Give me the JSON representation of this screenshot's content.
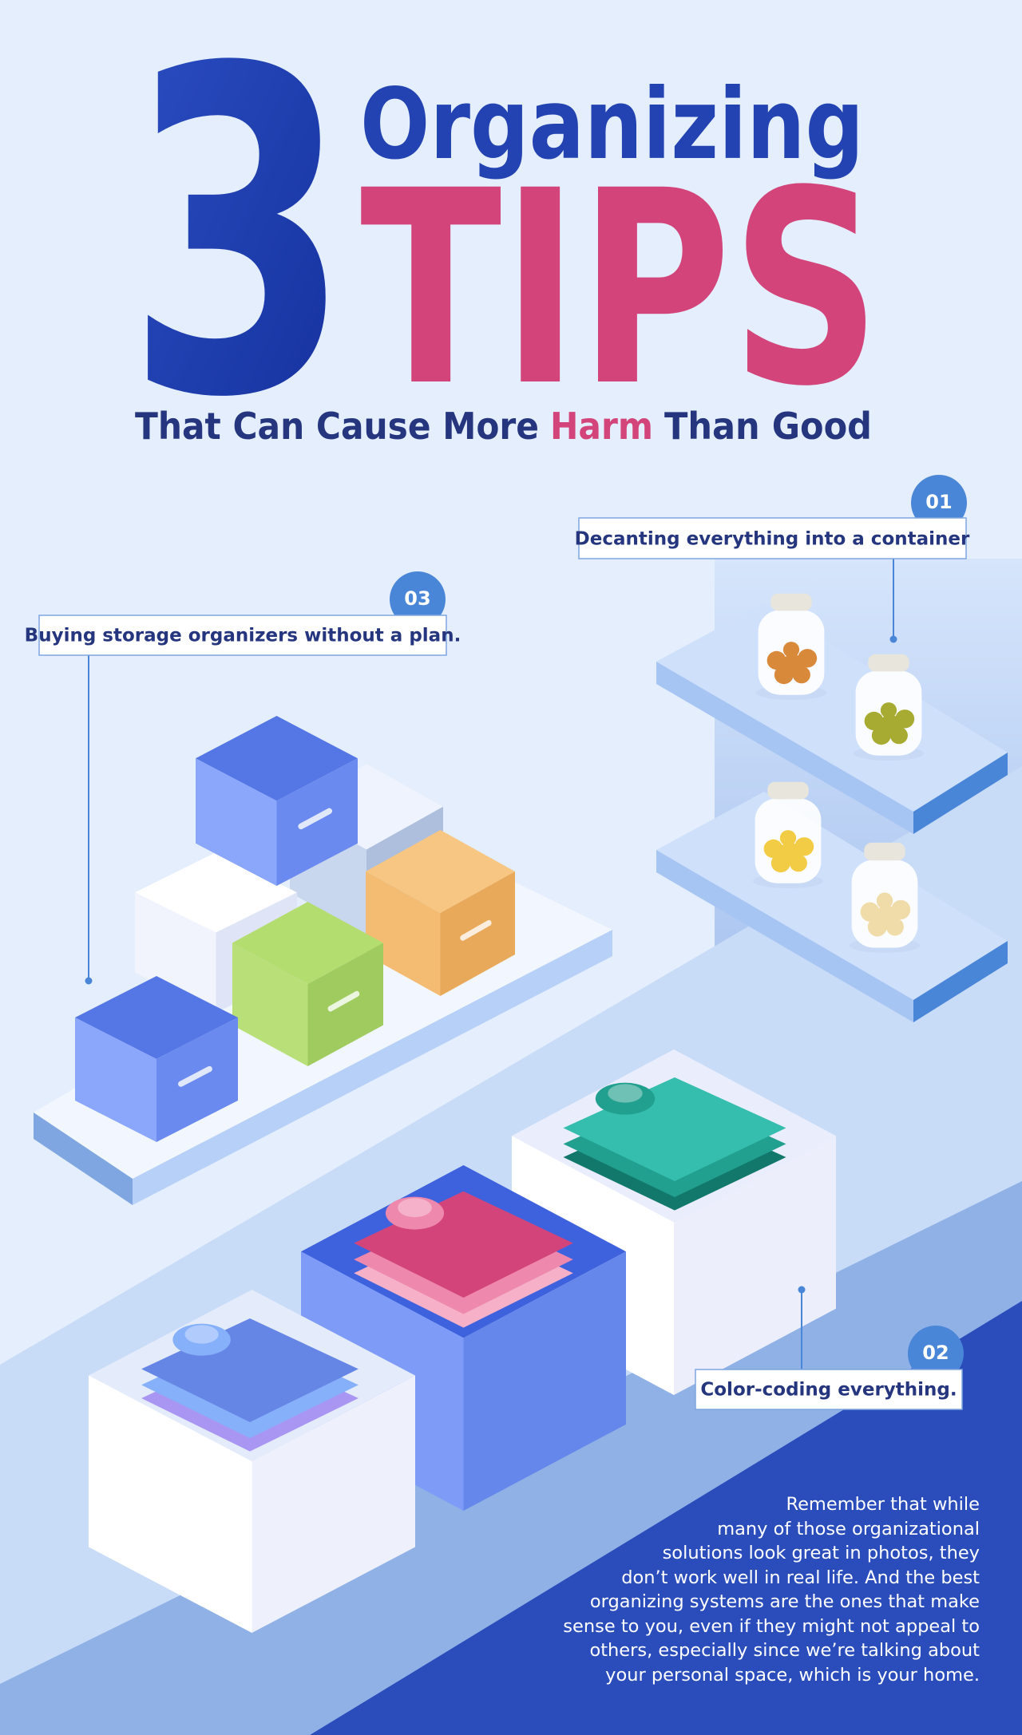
{
  "title": {
    "number": "3",
    "word": "Organizing",
    "tips": "TIPS",
    "subtitle": {
      "before": "That Can Cause More",
      "highlight": "Harm",
      "after": "Than Good"
    }
  },
  "tips": [
    {
      "number": "01",
      "text": "Decanting everything into a container"
    },
    {
      "number": "02",
      "text": "Color-coding everything."
    },
    {
      "number": "03",
      "text": "Buying storage organizers without a plan."
    }
  ],
  "note": {
    "lines": [
      "Remember that while",
      "many of those organizational",
      "solutions look great in photos, they",
      "don’t work well in real life. And the best",
      "organizing systems are the ones that make",
      "sense to you, even if they might not appeal to",
      "others, especially since we’re talking about",
      "your personal space, which is your home."
    ]
  }
}
